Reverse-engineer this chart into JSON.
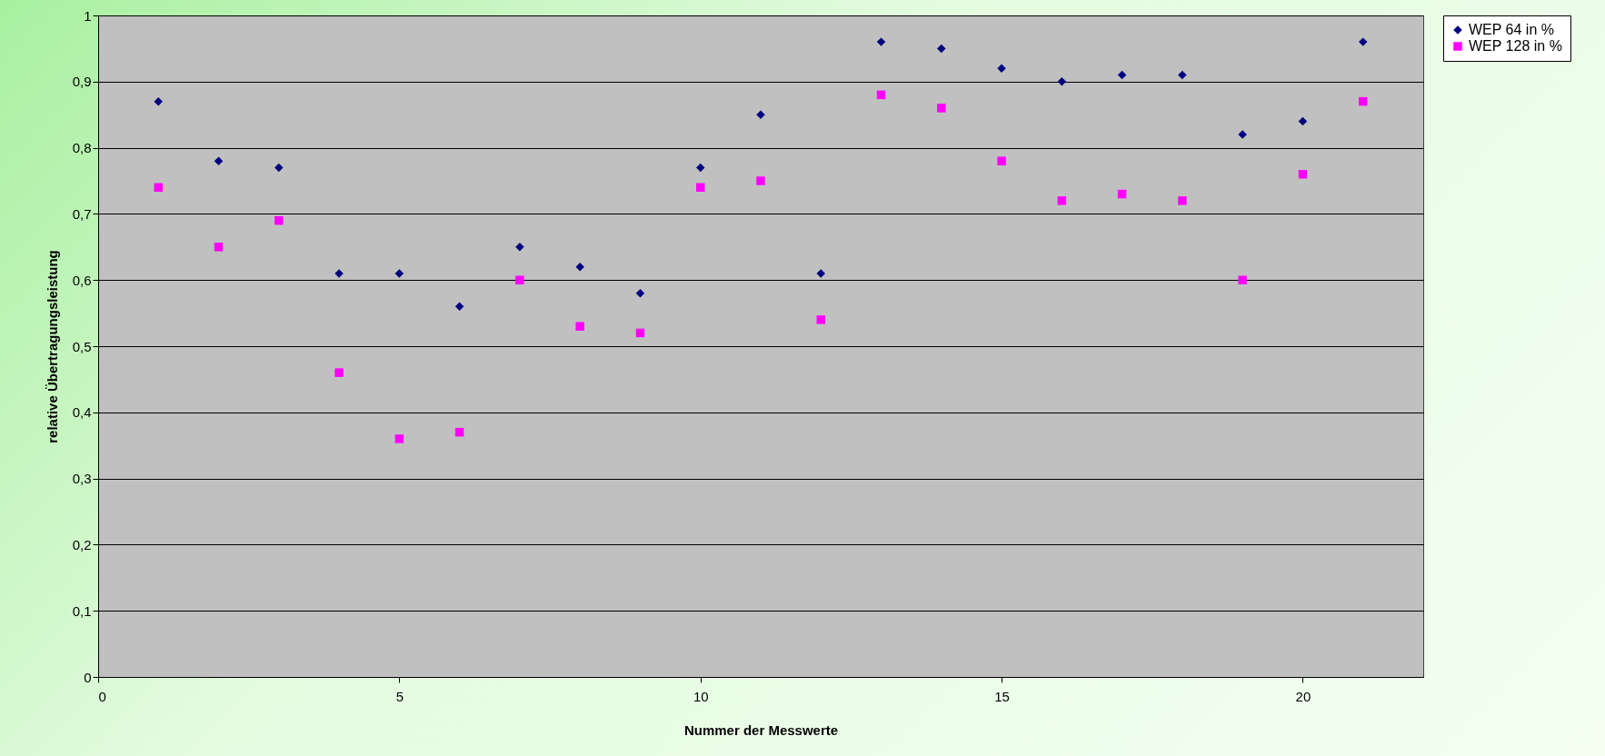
{
  "chart_data": {
    "type": "scatter",
    "xlabel": "Nummer der Messwerte",
    "ylabel": "relative Übertragungsleistung",
    "x": [
      1,
      2,
      3,
      4,
      5,
      6,
      7,
      8,
      9,
      10,
      11,
      12,
      13,
      14,
      15,
      16,
      17,
      18,
      19,
      20,
      21
    ],
    "series": [
      {
        "name": "WEP 64 in %",
        "color": "#000080",
        "marker": "diamond",
        "values": [
          0.87,
          0.78,
          0.77,
          0.61,
          0.61,
          0.56,
          0.65,
          0.62,
          0.58,
          0.77,
          0.85,
          0.61,
          0.96,
          0.95,
          0.92,
          0.9,
          0.91,
          0.91,
          0.82,
          0.84,
          0.96
        ]
      },
      {
        "name": "WEP 128 in %",
        "color": "#ff00ff",
        "marker": "square",
        "values": [
          0.74,
          0.65,
          0.69,
          0.46,
          0.36,
          0.37,
          0.6,
          0.53,
          0.52,
          0.74,
          0.75,
          0.54,
          0.88,
          0.86,
          0.78,
          0.72,
          0.73,
          0.72,
          0.6,
          0.76,
          0.87
        ]
      }
    ],
    "xlim": [
      0,
      22
    ],
    "xticks": [
      0,
      5,
      10,
      15,
      20
    ],
    "ylim": [
      0,
      1
    ],
    "yticks": [
      0,
      {
        "value": 0.1,
        "label": "0,1"
      },
      {
        "value": 0.2,
        "label": "0,2"
      },
      {
        "value": 0.3,
        "label": "0,3"
      },
      {
        "value": 0.4,
        "label": "0,4"
      },
      {
        "value": 0.5,
        "label": "0,5"
      },
      {
        "value": 0.6,
        "label": "0,6"
      },
      {
        "value": 0.7,
        "label": "0,7"
      },
      {
        "value": 0.8,
        "label": "0,8"
      },
      {
        "value": 0.9,
        "label": "0,9"
      },
      1
    ],
    "grid": "y",
    "legend": "right"
  }
}
